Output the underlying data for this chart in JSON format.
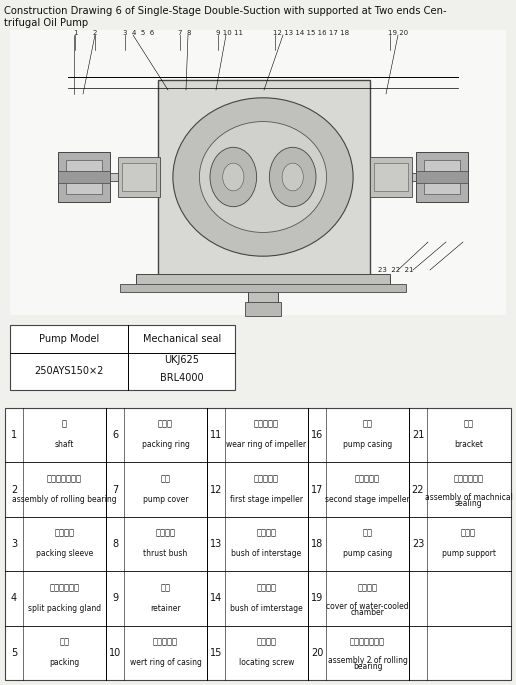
{
  "title_line1": "Construction Drawing 6 of Single-Stage Double-Suction with supported at Two ends Cen-",
  "title_line2": "trifugal Oil Pump",
  "pump_model_header": "Pump Model",
  "mechanical_seal_header": "Mechanical seal",
  "pump_model_value": "250AYS150×2",
  "mechanical_seal_values": [
    "UKJ625",
    "BRL4000"
  ],
  "parts_table": [
    {
      "num": "1",
      "zh": "轴",
      "en": "shaft",
      "num2": "6",
      "zh2": "填料环",
      "en2": "packing ring",
      "num3": "11",
      "zh3": "叶轮密封环",
      "en3": "wear ring of impeller",
      "num4": "16",
      "zh4": "泵体",
      "en4": "pump casing",
      "num5": "21",
      "zh5": "括架",
      "en5": "bracket"
    },
    {
      "num": "2",
      "zh": "滚动轴承乙部件",
      "en": "assembly of rolling bearing",
      "num2": "7",
      "zh2": "泵盖",
      "en2": "pump cover",
      "num3": "12",
      "zh3": "第一级叶轮",
      "en3": "first stage impeller",
      "num4": "17",
      "zh4": "第二级叶轮",
      "en4": "second stage impeller",
      "num5": "22",
      "zh5": "机械密封部件",
      "en5": "assembly of machnical\nsealing"
    },
    {
      "num": "3",
      "zh": "填料轴套",
      "en": "packing sleeve",
      "num2": "8",
      "zh2": "圄部衬套",
      "en2": "thrust bush",
      "num3": "13",
      "zh3": "级间衬套",
      "en3": "bush of interstage",
      "num4": "18",
      "zh4": "泵盖",
      "en4": "pump casing",
      "num5": "23",
      "zh5": "架支架",
      "en5": "pump support"
    },
    {
      "num": "4",
      "zh": "中开填料压盖",
      "en": "split packing gland",
      "num2": "9",
      "zh2": "挡套",
      "en2": "retainer",
      "num3": "14",
      "zh3": "级间轴承",
      "en3": "bush of imterstage",
      "num4": "19",
      "zh4": "水冷吸盖",
      "en4": "cover of water-cooled\nchamber",
      "num5": "",
      "zh5": "",
      "en5": ""
    },
    {
      "num": "5",
      "zh": "填料",
      "en": "packing",
      "num2": "10",
      "zh2": "弹体密封环",
      "en2": "wert ring of casing",
      "num3": "15",
      "zh3": "定位螺钉",
      "en3": "locating screw",
      "num4": "20",
      "zh4": "滚动轴承平面件",
      "en4": "assembly 2 of rolling\nbearing",
      "num5": "",
      "zh5": "",
      "en5": ""
    }
  ],
  "bg_color": "#f0f0ec",
  "table_bg": "#ffffff"
}
